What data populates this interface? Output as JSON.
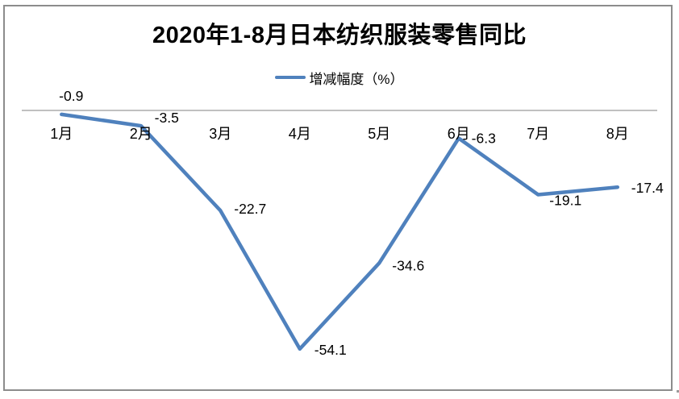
{
  "frame": {
    "border_color": "#8c8c8c",
    "background": "#ffffff"
  },
  "chart_data": {
    "type": "line",
    "title": "2020年1-8月日本纺织服装零售同比",
    "legend": {
      "label": "增减幅度（%）",
      "position": "top-center"
    },
    "categories": [
      "1月",
      "2月",
      "3月",
      "4月",
      "5月",
      "6月",
      "7月",
      "8月"
    ],
    "series": [
      {
        "name": "增减幅度（%）",
        "values": [
          -0.9,
          -3.5,
          -22.7,
          -54.1,
          -34.6,
          -6.3,
          -19.1,
          -17.4
        ],
        "color": "#4F81BD"
      }
    ],
    "data_labels": [
      "-0.9",
      "-3.5",
      "-22.7",
      "-54.1",
      "-34.6",
      "-6.3",
      "-19.1",
      "-17.4"
    ],
    "xlabel": "",
    "ylabel": "",
    "ylim": [
      -60,
      5
    ],
    "grid": false,
    "axis_line_color": "#9b9b9b",
    "text_color": "#000000"
  }
}
